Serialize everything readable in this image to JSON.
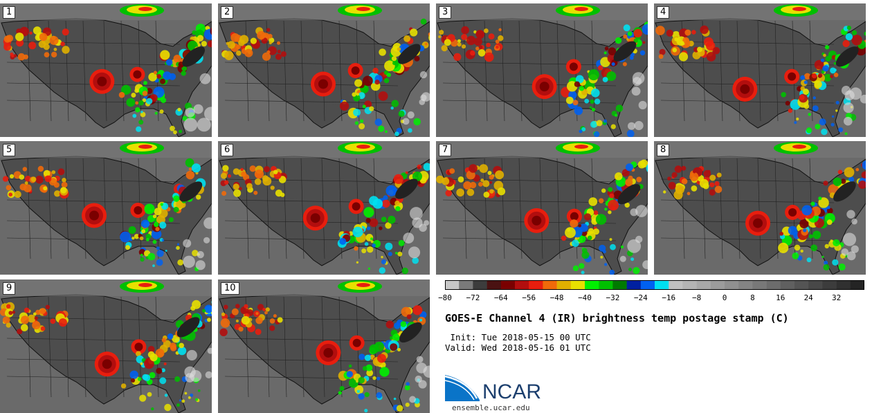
{
  "panels": [
    {
      "label": "1"
    },
    {
      "label": "2"
    },
    {
      "label": "3"
    },
    {
      "label": "4"
    },
    {
      "label": "5"
    },
    {
      "label": "6"
    },
    {
      "label": "7"
    },
    {
      "label": "8"
    },
    {
      "label": "9"
    },
    {
      "label": "10"
    }
  ],
  "colorbar": {
    "colors": [
      "#c8c8c8",
      "#7a7a7a",
      "#3c3c3c",
      "#4a1212",
      "#7a0000",
      "#b20e0e",
      "#e81e0e",
      "#f06a0a",
      "#e0b000",
      "#e8e000",
      "#00f000",
      "#00c000",
      "#007a00",
      "#0020a0",
      "#0060f0",
      "#00e0f0",
      "#c0c0c0",
      "#b4b4b4",
      "#a8a8a8",
      "#9c9c9c",
      "#909090",
      "#848484",
      "#787878",
      "#6c6c6c",
      "#606060",
      "#545454",
      "#484848",
      "#3c3c3c",
      "#303030",
      "#242424"
    ],
    "ticks": [
      "−80",
      "−72",
      "−64",
      "−56",
      "−48",
      "−40",
      "−32",
      "−24",
      "−16",
      "−8",
      "0",
      "8",
      "16",
      "24",
      "32"
    ]
  },
  "title": "GOES-E Channel 4 (IR) brightness temp postage stamp (C)",
  "init": " Init: Tue 2018-05-15 00 UTC",
  "valid": "Valid: Wed 2018-05-16 01 UTC",
  "logo_text": "NCAR",
  "url": "ensemble.ucar.edu"
}
